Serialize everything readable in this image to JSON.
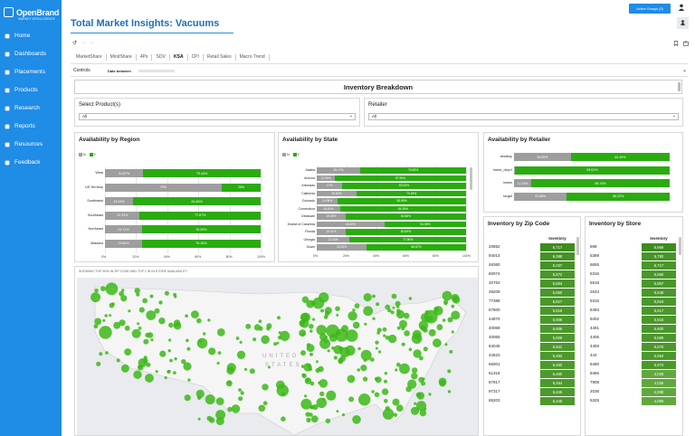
{
  "app": {
    "logo_name": "OpenBrand",
    "logo_tagline": "MARKET INTELLIGENCE"
  },
  "sidebar": {
    "items": [
      {
        "label": "Home",
        "icon": "home-icon"
      },
      {
        "label": "Dashboards",
        "icon": "dashboard-icon"
      },
      {
        "label": "Placements",
        "icon": "placements-icon"
      },
      {
        "label": "Products",
        "icon": "products-icon"
      },
      {
        "label": "Research",
        "icon": "search-icon"
      },
      {
        "label": "Reports",
        "icon": "reports-icon"
      },
      {
        "label": "Resources",
        "icon": "resources-icon"
      },
      {
        "label": "Feedback",
        "icon": "feedback-icon"
      }
    ]
  },
  "header": {
    "title": "Total Market Insights: Vacuums",
    "active_groups": "Active Groups (3)"
  },
  "tabs": [
    "MarketShare",
    "MindShare",
    "4Ps",
    "SOV",
    "KSA",
    "CPI",
    "Retail Sales",
    "Macro Trend"
  ],
  "active_tab": "KSA",
  "controls": {
    "label": "Controls",
    "date_label": "Date between"
  },
  "section_title": "Inventory Breakdown",
  "filters": {
    "product": {
      "label": "Select Product(s)",
      "value": "All"
    },
    "retailer": {
      "label": "Retailer",
      "value": "All"
    }
  },
  "legend": {
    "n": "N",
    "y": "Y"
  },
  "colors": {
    "accent": "#1f8ce6",
    "yes": "#2aab10",
    "no": "#9e9e9e"
  },
  "availability_region": {
    "title": "Availability by Region",
    "axis_ticks": [
      "0%",
      "20%",
      "40%",
      "60%",
      "80%",
      "100%"
    ],
    "rows": [
      {
        "name": "West",
        "n_label": "24.57%",
        "y_label": "75.43%",
        "n": 24.57
      },
      {
        "name": "US Territory",
        "n_label": "75%",
        "y_label": "25%",
        "n": 75
      },
      {
        "name": "Southwest",
        "n_label": "18.16%",
        "y_label": "81.84%",
        "n": 18.16
      },
      {
        "name": "Southeast",
        "n_label": "22.33%",
        "y_label": "77.67%",
        "n": 22.33
      },
      {
        "name": "Northeast",
        "n_label": "23.71%",
        "y_label": "76.29%",
        "n": 23.71
      },
      {
        "name": "Midwest",
        "n_label": "23.84%",
        "y_label": "76.16%",
        "n": 23.84
      }
    ]
  },
  "availability_state": {
    "title": "Availability by State",
    "axis_ticks": [
      "0%",
      "20%",
      "40%",
      "60%",
      "80%",
      "100%"
    ],
    "rows": [
      {
        "name": "Alaska",
        "n_label": "29.17%",
        "y_label": "70.83%",
        "n": 29.17
      },
      {
        "name": "Arizona",
        "n_label": "12.04%",
        "y_label": "87.96%",
        "n": 12.04
      },
      {
        "name": "Arkansas",
        "n_label": "17%",
        "y_label": "83.00%",
        "n": 17
      },
      {
        "name": "California",
        "n_label": "26.82%",
        "y_label": "73.18%",
        "n": 26.82
      },
      {
        "name": "Colorado",
        "n_label": "14.05%",
        "y_label": "85.95%",
        "n": 14.05
      },
      {
        "name": "Connecticut",
        "n_label": "15.61%",
        "y_label": "84.39%",
        "n": 15.61
      },
      {
        "name": "Delaware",
        "n_label": "19.35%",
        "y_label": "80.65%",
        "n": 19.35
      },
      {
        "name": "District of Columbia",
        "n_label": "45.45%",
        "y_label": "54.55%",
        "n": 45.45
      },
      {
        "name": "Florida",
        "n_label": "19.31%",
        "y_label": "80.69%",
        "n": 19.31
      },
      {
        "name": "Georgia",
        "n_label": "22.04%",
        "y_label": "77.96%",
        "n": 22.04
      },
      {
        "name": "Guam",
        "n_label": "33.33%",
        "y_label": "66.67%",
        "n": 33.33
      }
    ]
  },
  "availability_retailer": {
    "title": "Availability by Retailer",
    "rows": [
      {
        "name": "bestbuy",
        "n_label": "36.55%",
        "y_label": "63.45%",
        "n": 36.55
      },
      {
        "name": "home_depot",
        "n_label": "0.39%",
        "y_label": "99.61%",
        "n": 0.39
      },
      {
        "name": "lowes",
        "n_label": "11.24%",
        "y_label": "88.76%",
        "n": 11.24
      },
      {
        "name": "target",
        "n_label": "33.88%",
        "y_label": "66.12%",
        "n": 33.88
      }
    ]
  },
  "inventory_zip": {
    "title": "Inventory by Zip Code",
    "column": "Inventory",
    "rows": [
      [
        "20852",
        "6,717"
      ],
      [
        "94014",
        "6,088"
      ],
      [
        "46360",
        "6,037"
      ],
      [
        "60074",
        "5,672"
      ],
      [
        "32763",
        "5,654"
      ],
      [
        "29209",
        "5,650"
      ],
      [
        "77388",
        "5,617"
      ],
      [
        "57600",
        "5,616"
      ],
      [
        "44870",
        "5,606"
      ],
      [
        "40069",
        "5,606"
      ],
      [
        "40065",
        "5,606"
      ],
      [
        "84045",
        "5,541"
      ],
      [
        "42823",
        "5,462"
      ],
      [
        "56001",
        "5,460"
      ],
      [
        "61318",
        "5,460"
      ],
      [
        "87917",
        "5,454"
      ],
      [
        "97317",
        "5,445"
      ],
      [
        "65203",
        "5,445"
      ]
    ],
    "max": 6717
  },
  "inventory_store": {
    "title": "Inventory by Store",
    "column": "Inventory",
    "rows": [
      [
        "599",
        "6,669"
      ],
      [
        "5389",
        "5,782"
      ],
      [
        "6655",
        "5,717"
      ],
      [
        "5316",
        "5,660"
      ],
      [
        "5618",
        "5,657"
      ],
      [
        "2643",
        "5,646"
      ],
      [
        "5315",
        "5,624"
      ],
      [
        "8493",
        "5,617"
      ],
      [
        "9402",
        "5,616"
      ],
      [
        "4491",
        "5,600"
      ],
      [
        "4406",
        "5,589"
      ],
      [
        "4459",
        "5,575"
      ],
      [
        "444",
        "5,554"
      ],
      [
        "6480",
        "5,573"
      ],
      [
        "8466",
        "4,026"
      ],
      [
        "7908",
        "4,026"
      ],
      [
        "2036",
        "4,006"
      ],
      [
        "5325",
        "4,006"
      ]
    ],
    "max": 6669
  },
  "map": {
    "caption": "SHOWING TOP 3000 IN ZIP CODE AND TOP 2 IN IN-STORE AVAILABILITY",
    "label_line1": "UNITED",
    "label_line2": "STATES"
  }
}
